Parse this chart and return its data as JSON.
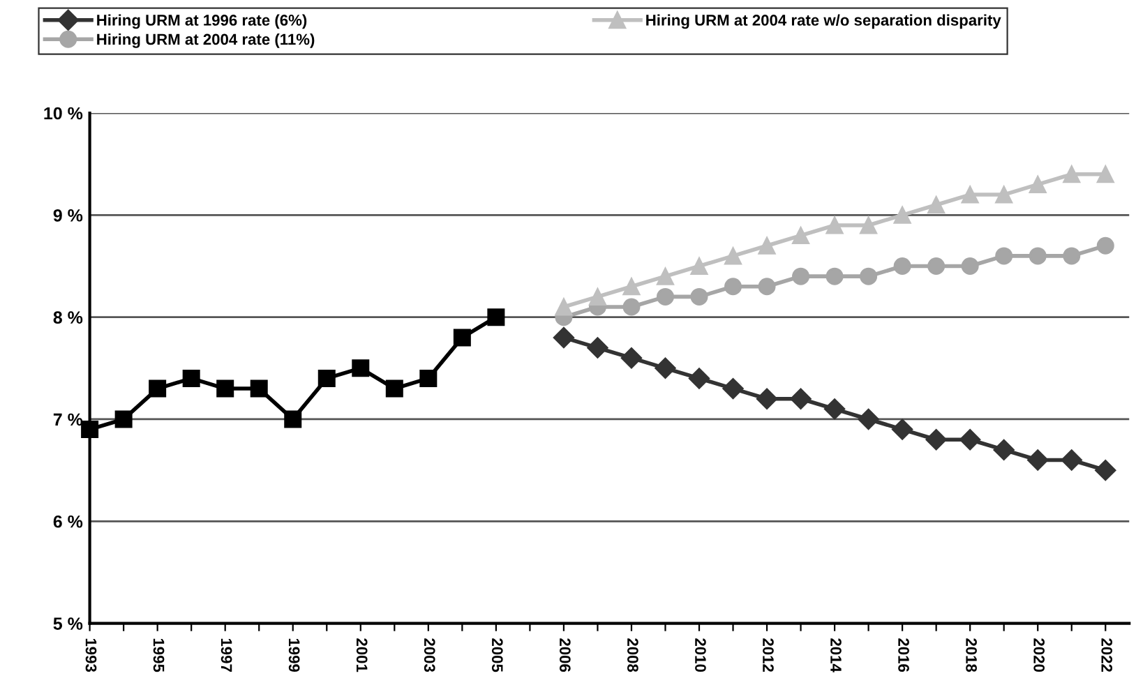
{
  "chart_data": {
    "type": "line",
    "categories": [
      "1993",
      null,
      "1995",
      null,
      "1997",
      null,
      "1999",
      null,
      "2001",
      null,
      "2003",
      null,
      "2005",
      null,
      "2006",
      null,
      "2008",
      null,
      "2010",
      null,
      "2012",
      null,
      "2014",
      null,
      "2016",
      null,
      "2018",
      null,
      "2020",
      null,
      "2022"
    ],
    "series": [
      {
        "color": "#000000",
        "marker": "square",
        "values": [
          6.9,
          7.0,
          7.3,
          7.4,
          7.3,
          7.3,
          7.0,
          7.4,
          7.5,
          7.3,
          7.4,
          7.8,
          8.0,
          null,
          null,
          null,
          null,
          null,
          null,
          null,
          null,
          null,
          null,
          null,
          null,
          null,
          null,
          null,
          null,
          null,
          null
        ]
      },
      {
        "name": "Hiring URM at 1996 rate (6%)",
        "color": "#333333",
        "marker": "diamond",
        "values": [
          null,
          null,
          null,
          null,
          null,
          null,
          null,
          null,
          null,
          null,
          null,
          null,
          null,
          null,
          7.8,
          7.7,
          7.6,
          7.5,
          7.4,
          7.3,
          7.2,
          7.2,
          7.1,
          7.0,
          6.9,
          6.8,
          6.8,
          6.7,
          6.6,
          6.6,
          6.5
        ]
      },
      {
        "name": "Hiring URM at 2004 rate (11%)",
        "color": "#a6a6a6",
        "marker": "circle",
        "values": [
          null,
          null,
          null,
          null,
          null,
          null,
          null,
          null,
          null,
          null,
          null,
          null,
          null,
          null,
          8.0,
          8.1,
          8.1,
          8.2,
          8.2,
          8.3,
          8.3,
          8.4,
          8.4,
          8.4,
          8.5,
          8.5,
          8.5,
          8.6,
          8.6,
          8.6,
          8.7
        ]
      },
      {
        "name": "Hiring URM at 2004 rate w/o separation disparity",
        "color": "#bfbfbf",
        "marker": "triangle",
        "values": [
          null,
          null,
          null,
          null,
          null,
          null,
          null,
          null,
          null,
          null,
          null,
          null,
          null,
          null,
          8.1,
          8.2,
          8.3,
          8.4,
          8.5,
          8.6,
          8.7,
          8.8,
          8.9,
          8.9,
          9.0,
          9.1,
          9.2,
          9.2,
          9.3,
          9.4,
          9.4
        ]
      }
    ],
    "ylim": [
      5,
      10
    ],
    "yticks": [
      {
        "value": 5,
        "label": "5 %"
      },
      {
        "value": 6,
        "label": "6 %"
      },
      {
        "value": 7,
        "label": "7 %"
      },
      {
        "value": 8,
        "label": "8 %"
      },
      {
        "value": 9,
        "label": "9 %"
      },
      {
        "value": 10,
        "label": "10 %"
      }
    ],
    "grid": "y",
    "legend": "top",
    "line_style": "solid"
  }
}
